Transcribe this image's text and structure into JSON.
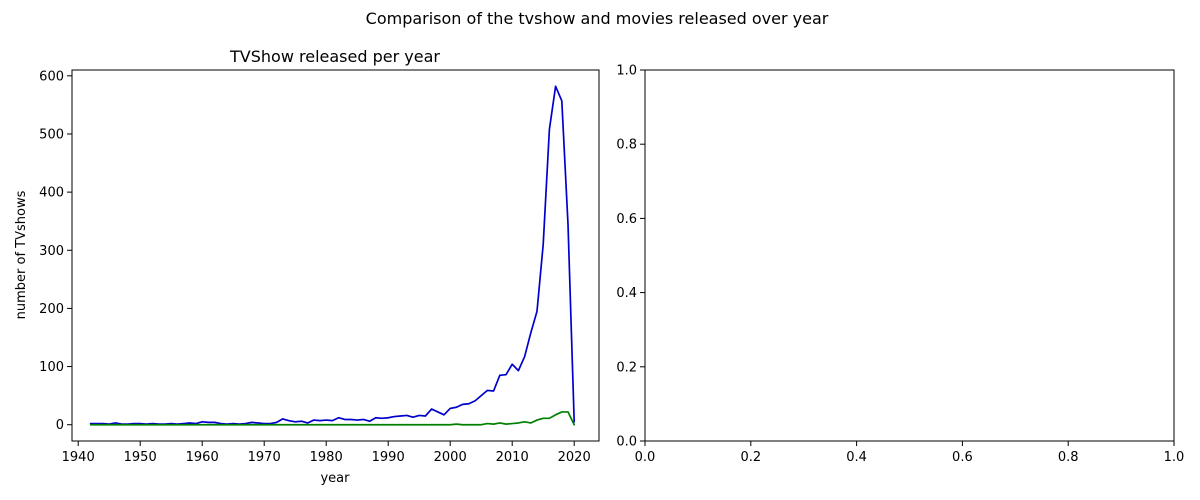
{
  "figure": {
    "suptitle": "Comparison of the tvshow and movies released over year"
  },
  "chart_data": [
    {
      "type": "line",
      "title": "TVShow released per year",
      "xlabel": "year",
      "ylabel": "number of TVshows",
      "xlim": [
        1939,
        2024
      ],
      "ylim": [
        -28,
        610
      ],
      "xticks": [
        1940,
        1950,
        1960,
        1970,
        1980,
        1990,
        2000,
        2010,
        2020
      ],
      "yticks": [
        0,
        100,
        200,
        300,
        400,
        500,
        600
      ],
      "legend": "none",
      "grid": false,
      "series": [
        {
          "color": "#0000cc",
          "x": [
            1942,
            1943,
            1944,
            1945,
            1946,
            1947,
            1948,
            1949,
            1950,
            1951,
            1952,
            1953,
            1954,
            1955,
            1956,
            1957,
            1958,
            1959,
            1960,
            1961,
            1962,
            1963,
            1964,
            1965,
            1966,
            1967,
            1968,
            1969,
            1970,
            1971,
            1972,
            1973,
            1974,
            1975,
            1976,
            1977,
            1978,
            1979,
            1980,
            1981,
            1982,
            1983,
            1984,
            1985,
            1986,
            1987,
            1988,
            1989,
            1990,
            1991,
            1992,
            1993,
            1994,
            1995,
            1996,
            1997,
            1998,
            1999,
            2000,
            2001,
            2002,
            2003,
            2004,
            2005,
            2006,
            2007,
            2008,
            2009,
            2010,
            2011,
            2012,
            2013,
            2014,
            2015,
            2016,
            2017,
            2018,
            2019,
            2020
          ],
          "values": [
            2,
            2,
            2,
            1,
            3,
            1,
            1,
            2,
            2,
            1,
            2,
            1,
            1,
            2,
            1,
            2,
            3,
            2,
            5,
            4,
            4,
            2,
            1,
            2,
            1,
            2,
            4,
            3,
            2,
            2,
            4,
            10,
            7,
            5,
            6,
            3,
            8,
            7,
            8,
            7,
            12,
            9,
            9,
            8,
            9,
            6,
            12,
            11,
            12,
            14,
            15,
            16,
            13,
            16,
            15,
            27,
            22,
            17,
            28,
            30,
            35,
            36,
            41,
            50,
            59,
            58,
            85,
            86,
            104,
            93,
            117,
            158,
            195,
            310,
            508,
            582,
            557,
            345,
            5
          ]
        },
        {
          "color": "#008000",
          "x": [
            1942,
            1943,
            1944,
            1945,
            1946,
            1947,
            1948,
            1949,
            1950,
            1951,
            1952,
            1953,
            1954,
            1955,
            1956,
            1957,
            1958,
            1959,
            1960,
            1961,
            1962,
            1963,
            1964,
            1965,
            1966,
            1967,
            1968,
            1969,
            1970,
            1971,
            1972,
            1973,
            1974,
            1975,
            1976,
            1977,
            1978,
            1979,
            1980,
            1981,
            1982,
            1983,
            1984,
            1985,
            1986,
            1987,
            1988,
            1989,
            1990,
            1991,
            1992,
            1993,
            1994,
            1995,
            1996,
            1997,
            1998,
            1999,
            2000,
            2001,
            2002,
            2003,
            2004,
            2005,
            2006,
            2007,
            2008,
            2009,
            2010,
            2011,
            2012,
            2013,
            2014,
            2015,
            2016,
            2017,
            2018,
            2019,
            2020
          ],
          "values": [
            0,
            0,
            0,
            0,
            0,
            0,
            0,
            0,
            0,
            0,
            0,
            0,
            0,
            0,
            0,
            0,
            0,
            0,
            0,
            0,
            0,
            0,
            0,
            0,
            0,
            0,
            0,
            0,
            0,
            0,
            0,
            0,
            0,
            0,
            0,
            0,
            0,
            0,
            0,
            0,
            0,
            0,
            0,
            0,
            0,
            0,
            0,
            0,
            0,
            0,
            0,
            0,
            0,
            0,
            0,
            0,
            0,
            0,
            0,
            1,
            0,
            0,
            0,
            0,
            2,
            1,
            3,
            1,
            2,
            3,
            5,
            3,
            8,
            11,
            11,
            17,
            22,
            22,
            0
          ]
        }
      ]
    },
    {
      "type": "line",
      "title": "",
      "xlabel": "",
      "ylabel": "",
      "xlim": [
        0,
        1
      ],
      "ylim": [
        0,
        1
      ],
      "xticks": [
        0.0,
        0.2,
        0.4,
        0.6,
        0.8,
        1.0
      ],
      "yticks": [
        0.0,
        0.2,
        0.4,
        0.6,
        0.8,
        1.0
      ],
      "xtick_labels": [
        "0.0",
        "0.2",
        "0.4",
        "0.6",
        "0.8",
        "1.0"
      ],
      "ytick_labels": [
        "0.0",
        "0.2",
        "0.4",
        "0.6",
        "0.8",
        "1.0"
      ],
      "legend": "none",
      "grid": false,
      "series": []
    }
  ]
}
